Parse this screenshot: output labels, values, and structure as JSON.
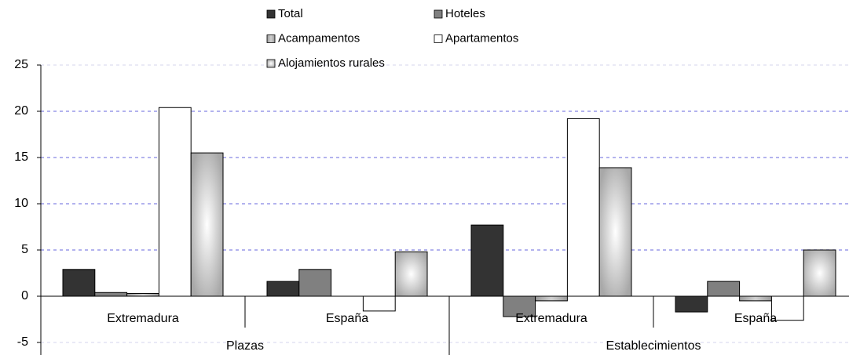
{
  "chart_data": {
    "type": "bar",
    "category_groups": [
      {
        "name": "Plazas",
        "categories": [
          "Extremadura",
          "España"
        ]
      },
      {
        "name": "Establecimientos",
        "categories": [
          "Extremadura",
          "España"
        ]
      }
    ],
    "series": [
      {
        "name": "Total",
        "color": "#333333",
        "values": [
          2.9,
          1.6,
          7.7,
          -1.7
        ]
      },
      {
        "name": "Hoteles",
        "color": "#808080",
        "values": [
          0.4,
          2.9,
          -2.2,
          1.6
        ]
      },
      {
        "name": "Acampamentos",
        "color": "#b4b4b4",
        "values": [
          0.3,
          0,
          -0.5,
          -0.5
        ]
      },
      {
        "name": "Apartamentos",
        "color": "#ffffff",
        "values": [
          20.4,
          -1.6,
          19.2,
          -2.6
        ]
      },
      {
        "name": "Alojamientos rurales",
        "color": "#c8c8c8",
        "values": [
          15.5,
          4.8,
          13.9,
          5.0
        ]
      }
    ],
    "ylim": [
      -5,
      25
    ],
    "yticks": [
      -5,
      0,
      5,
      10,
      15,
      20,
      25
    ],
    "grid": true
  }
}
